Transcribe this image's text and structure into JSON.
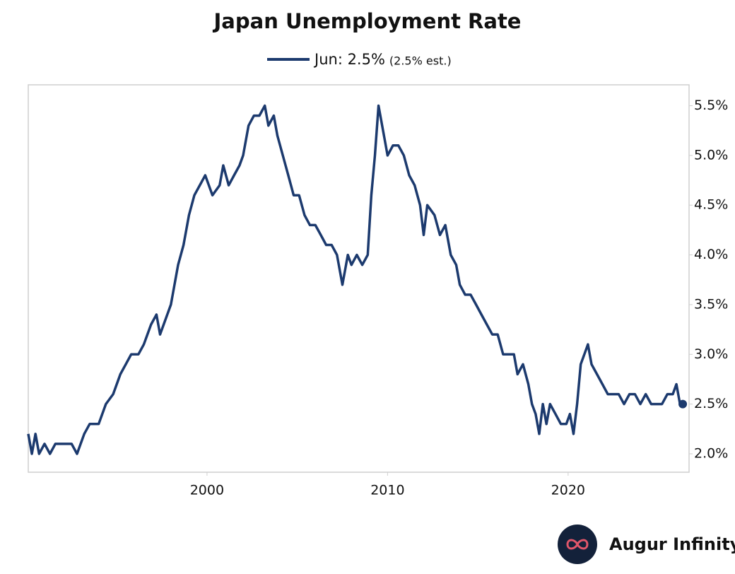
{
  "chart_data": {
    "type": "line",
    "title": "Japan Unemployment Rate",
    "legend_note": "(2.5% est.)",
    "x": [
      1990.1,
      1990.3,
      1990.5,
      1990.7,
      1991.0,
      1991.3,
      1991.6,
      1992.0,
      1992.5,
      1992.8,
      1993.2,
      1993.5,
      1994.0,
      1994.4,
      1994.8,
      1995.2,
      1995.5,
      1995.8,
      1996.2,
      1996.5,
      1996.9,
      1997.2,
      1997.4,
      1997.8,
      1998.0,
      1998.4,
      1998.7,
      1999.0,
      1999.3,
      1999.6,
      1999.9,
      2000.3,
      2000.7,
      2000.9,
      2001.2,
      2001.5,
      2001.8,
      2002.0,
      2002.3,
      2002.6,
      2002.9,
      2003.2,
      2003.4,
      2003.7,
      2003.9,
      2004.2,
      2004.5,
      2004.8,
      2005.1,
      2005.4,
      2005.7,
      2006.0,
      2006.3,
      2006.6,
      2006.9,
      2007.2,
      2007.5,
      2007.8,
      2008.0,
      2008.3,
      2008.6,
      2008.9,
      2009.1,
      2009.3,
      2009.5,
      2009.8,
      2010.0,
      2010.3,
      2010.6,
      2010.9,
      2011.2,
      2011.5,
      2011.8,
      2012.0,
      2012.2,
      2012.6,
      2012.9,
      2013.2,
      2013.5,
      2013.8,
      2014.0,
      2014.3,
      2014.6,
      2014.9,
      2015.2,
      2015.5,
      2015.8,
      2016.1,
      2016.4,
      2016.7,
      2017.0,
      2017.2,
      2017.5,
      2017.8,
      2018.0,
      2018.2,
      2018.4,
      2018.6,
      2018.8,
      2019.0,
      2019.3,
      2019.6,
      2019.9,
      2020.1,
      2020.3,
      2020.5,
      2020.7,
      2020.9,
      2021.1,
      2021.3,
      2021.6,
      2021.9,
      2022.2,
      2022.5,
      2022.8,
      2023.1,
      2023.4,
      2023.7,
      2024.0,
      2024.3,
      2024.6,
      2024.9,
      2025.2,
      2025.5,
      2025.8,
      2026.0,
      2026.2,
      2026.35
    ],
    "series": [
      {
        "name": "Jun: 2.5%",
        "color": "#1c3a6e",
        "values": [
          2.2,
          2.0,
          2.2,
          2.0,
          2.1,
          2.0,
          2.1,
          2.1,
          2.1,
          2.0,
          2.2,
          2.3,
          2.3,
          2.5,
          2.6,
          2.8,
          2.9,
          3.0,
          3.0,
          3.1,
          3.3,
          3.4,
          3.2,
          3.4,
          3.5,
          3.9,
          4.1,
          4.4,
          4.6,
          4.7,
          4.8,
          4.6,
          4.7,
          4.9,
          4.7,
          4.8,
          4.9,
          5.0,
          5.3,
          5.4,
          5.4,
          5.5,
          5.3,
          5.4,
          5.2,
          5.0,
          4.8,
          4.6,
          4.6,
          4.4,
          4.3,
          4.3,
          4.2,
          4.1,
          4.1,
          4.0,
          3.7,
          4.0,
          3.9,
          4.0,
          3.9,
          4.0,
          4.6,
          5.0,
          5.5,
          5.2,
          5.0,
          5.1,
          5.1,
          5.0,
          4.8,
          4.7,
          4.5,
          4.2,
          4.5,
          4.4,
          4.2,
          4.3,
          4.0,
          3.9,
          3.7,
          3.6,
          3.6,
          3.5,
          3.4,
          3.3,
          3.2,
          3.2,
          3.0,
          3.0,
          3.0,
          2.8,
          2.9,
          2.7,
          2.5,
          2.4,
          2.2,
          2.5,
          2.3,
          2.5,
          2.4,
          2.3,
          2.3,
          2.4,
          2.2,
          2.5,
          2.9,
          3.0,
          3.1,
          2.9,
          2.8,
          2.7,
          2.6,
          2.6,
          2.6,
          2.5,
          2.6,
          2.6,
          2.5,
          2.6,
          2.5,
          2.5,
          2.5,
          2.6,
          2.6,
          2.7,
          2.5,
          2.5
        ]
      }
    ],
    "xlim": [
      1990.1,
      2026.7
    ],
    "xticks": [
      2000,
      2010,
      2020
    ],
    "ylim": [
      1.815,
      5.71
    ],
    "yticks": [
      {
        "value": 2.0,
        "label": "2.0%"
      },
      {
        "value": 2.5,
        "label": "2.5%"
      },
      {
        "value": 3.0,
        "label": "3.0%"
      },
      {
        "value": 3.5,
        "label": "3.5%"
      },
      {
        "value": 4.0,
        "label": "4.0%"
      },
      {
        "value": 4.5,
        "label": "4.5%"
      },
      {
        "value": 5.0,
        "label": "5.0%"
      },
      {
        "value": 5.5,
        "label": "5.5%"
      }
    ],
    "grid": false,
    "end_marker": true
  },
  "brand": "Augur Infinity"
}
